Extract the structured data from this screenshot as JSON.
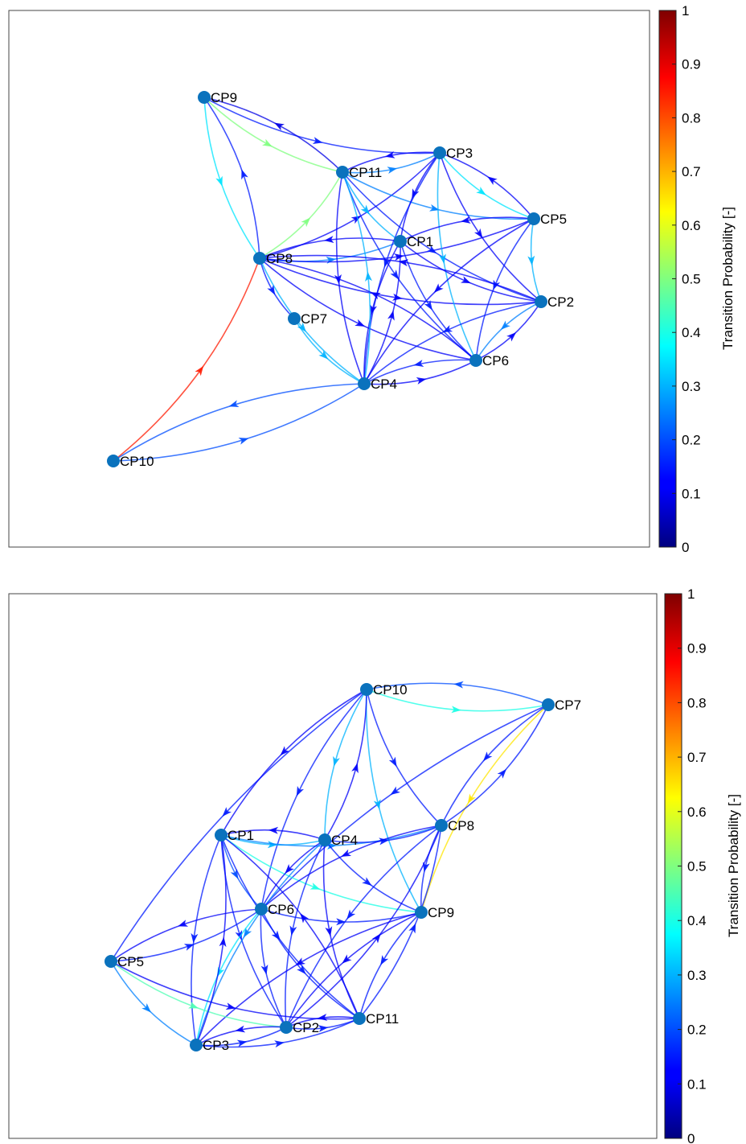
{
  "colorbar": {
    "title": "Transition Probability [-]",
    "ticks": [
      "0",
      "0.1",
      "0.2",
      "0.3",
      "0.4",
      "0.5",
      "0.6",
      "0.7",
      "0.8",
      "0.9",
      "1"
    ]
  },
  "graphs": [
    {
      "id": "top",
      "nodes": [
        {
          "id": "CP1",
          "label": "CP1"
        },
        {
          "id": "CP2",
          "label": "CP2"
        },
        {
          "id": "CP3",
          "label": "CP3"
        },
        {
          "id": "CP4",
          "label": "CP4"
        },
        {
          "id": "CP5",
          "label": "CP5"
        },
        {
          "id": "CP6",
          "label": "CP6"
        },
        {
          "id": "CP7",
          "label": "CP7"
        },
        {
          "id": "CP8",
          "label": "CP8"
        },
        {
          "id": "CP9",
          "label": "CP9"
        },
        {
          "id": "CP10",
          "label": "CP10"
        },
        {
          "id": "CP11",
          "label": "CP11"
        }
      ],
      "edges": [
        {
          "from": "CP10",
          "to": "CP8",
          "p": 0.85
        },
        {
          "from": "CP10",
          "to": "CP4",
          "p": 0.2
        },
        {
          "from": "CP4",
          "to": "CP10",
          "p": 0.2
        },
        {
          "from": "CP9",
          "to": "CP3",
          "p": 0.15
        },
        {
          "from": "CP9",
          "to": "CP8",
          "p": 0.35
        },
        {
          "from": "CP8",
          "to": "CP9",
          "p": 0.15
        },
        {
          "from": "CP9",
          "to": "CP11",
          "p": 0.5
        },
        {
          "from": "CP11",
          "to": "CP9",
          "p": 0.1
        },
        {
          "from": "CP8",
          "to": "CP11",
          "p": 0.5
        },
        {
          "from": "CP8",
          "to": "CP3",
          "p": 0.12
        },
        {
          "from": "CP8",
          "to": "CP1",
          "p": 0.25
        },
        {
          "from": "CP1",
          "to": "CP8",
          "p": 0.12
        },
        {
          "from": "CP8",
          "to": "CP5",
          "p": 0.12
        },
        {
          "from": "CP8",
          "to": "CP2",
          "p": 0.12
        },
        {
          "from": "CP8",
          "to": "CP6",
          "p": 0.12
        },
        {
          "from": "CP8",
          "to": "CP4",
          "p": 0.3
        },
        {
          "from": "CP8",
          "to": "CP7",
          "p": 0.15
        },
        {
          "from": "CP11",
          "to": "CP3",
          "p": 0.25
        },
        {
          "from": "CP3",
          "to": "CP11",
          "p": 0.12
        },
        {
          "from": "CP11",
          "to": "CP1",
          "p": 0.3
        },
        {
          "from": "CP11",
          "to": "CP5",
          "p": 0.25
        },
        {
          "from": "CP11",
          "to": "CP2",
          "p": 0.15
        },
        {
          "from": "CP11",
          "to": "CP6",
          "p": 0.15
        },
        {
          "from": "CP11",
          "to": "CP4",
          "p": 0.12
        },
        {
          "from": "CP3",
          "to": "CP5",
          "p": 0.35
        },
        {
          "from": "CP5",
          "to": "CP3",
          "p": 0.12
        },
        {
          "from": "CP3",
          "to": "CP1",
          "p": 0.12
        },
        {
          "from": "CP3",
          "to": "CP4",
          "p": 0.15
        },
        {
          "from": "CP3",
          "to": "CP6",
          "p": 0.3
        },
        {
          "from": "CP3",
          "to": "CP2",
          "p": 0.12
        },
        {
          "from": "CP5",
          "to": "CP1",
          "p": 0.12
        },
        {
          "from": "CP5",
          "to": "CP2",
          "p": 0.3
        },
        {
          "from": "CP5",
          "to": "CP6",
          "p": 0.15
        },
        {
          "from": "CP5",
          "to": "CP4",
          "p": 0.12
        },
        {
          "from": "CP1",
          "to": "CP2",
          "p": 0.12
        },
        {
          "from": "CP1",
          "to": "CP6",
          "p": 0.15
        },
        {
          "from": "CP1",
          "to": "CP4",
          "p": 0.12
        },
        {
          "from": "CP2",
          "to": "CP6",
          "p": 0.25
        },
        {
          "from": "CP6",
          "to": "CP2",
          "p": 0.12
        },
        {
          "from": "CP2",
          "to": "CP4",
          "p": 0.15
        },
        {
          "from": "CP6",
          "to": "CP4",
          "p": 0.15
        },
        {
          "from": "CP4",
          "to": "CP6",
          "p": 0.12
        },
        {
          "from": "CP4",
          "to": "CP1",
          "p": 0.12
        },
        {
          "from": "CP7",
          "to": "CP4",
          "p": 0.3
        },
        {
          "from": "CP4",
          "to": "CP11",
          "p": 0.3
        },
        {
          "from": "CP6",
          "to": "CP8",
          "p": 0.12
        },
        {
          "from": "CP2",
          "to": "CP8",
          "p": 0.12
        }
      ]
    },
    {
      "id": "bottom",
      "nodes": [
        {
          "id": "CP1",
          "label": "CP1"
        },
        {
          "id": "CP2",
          "label": "CP2"
        },
        {
          "id": "CP3",
          "label": "CP3"
        },
        {
          "id": "CP4",
          "label": "CP4"
        },
        {
          "id": "CP5",
          "label": "CP5"
        },
        {
          "id": "CP6",
          "label": "CP6"
        },
        {
          "id": "CP7",
          "label": "CP7"
        },
        {
          "id": "CP8",
          "label": "CP8"
        },
        {
          "id": "CP9",
          "label": "CP9"
        },
        {
          "id": "CP10",
          "label": "CP10"
        },
        {
          "id": "CP11",
          "label": "CP11"
        }
      ],
      "edges": [
        {
          "from": "CP10",
          "to": "CP7",
          "p": 0.4
        },
        {
          "from": "CP7",
          "to": "CP10",
          "p": 0.2
        },
        {
          "from": "CP7",
          "to": "CP9",
          "p": 0.65
        },
        {
          "from": "CP7",
          "to": "CP8",
          "p": 0.15
        },
        {
          "from": "CP8",
          "to": "CP7",
          "p": 0.15
        },
        {
          "from": "CP7",
          "to": "CP6",
          "p": 0.15
        },
        {
          "from": "CP10",
          "to": "CP5",
          "p": 0.15
        },
        {
          "from": "CP10",
          "to": "CP1",
          "p": 0.12
        },
        {
          "from": "CP10",
          "to": "CP4",
          "p": 0.3
        },
        {
          "from": "CP10",
          "to": "CP8",
          "p": 0.15
        },
        {
          "from": "CP10",
          "to": "CP9",
          "p": 0.3
        },
        {
          "from": "CP10",
          "to": "CP6",
          "p": 0.15
        },
        {
          "from": "CP4",
          "to": "CP10",
          "p": 0.12
        },
        {
          "from": "CP1",
          "to": "CP4",
          "p": 0.3
        },
        {
          "from": "CP4",
          "to": "CP1",
          "p": 0.12
        },
        {
          "from": "CP1",
          "to": "CP8",
          "p": 0.25
        },
        {
          "from": "CP1",
          "to": "CP6",
          "p": 0.2
        },
        {
          "from": "CP1",
          "to": "CP9",
          "p": 0.4
        },
        {
          "from": "CP1",
          "to": "CP2",
          "p": 0.15
        },
        {
          "from": "CP1",
          "to": "CP3",
          "p": 0.15
        },
        {
          "from": "CP1",
          "to": "CP11",
          "p": 0.15
        },
        {
          "from": "CP4",
          "to": "CP8",
          "p": 0.15
        },
        {
          "from": "CP4",
          "to": "CP6",
          "p": 0.12
        },
        {
          "from": "CP4",
          "to": "CP9",
          "p": 0.15
        },
        {
          "from": "CP4",
          "to": "CP3",
          "p": 0.25
        },
        {
          "from": "CP4",
          "to": "CP2",
          "p": 0.15
        },
        {
          "from": "CP4",
          "to": "CP11",
          "p": 0.12
        },
        {
          "from": "CP8",
          "to": "CP6",
          "p": 0.12
        },
        {
          "from": "CP8",
          "to": "CP9",
          "p": 0.15
        },
        {
          "from": "CP8",
          "to": "CP2",
          "p": 0.15
        },
        {
          "from": "CP6",
          "to": "CP9",
          "p": 0.15
        },
        {
          "from": "CP6",
          "to": "CP2",
          "p": 0.15
        },
        {
          "from": "CP6",
          "to": "CP3",
          "p": 0.35
        },
        {
          "from": "CP6",
          "to": "CP11",
          "p": 0.15
        },
        {
          "from": "CP6",
          "to": "CP5",
          "p": 0.12
        },
        {
          "from": "CP9",
          "to": "CP2",
          "p": 0.12
        },
        {
          "from": "CP9",
          "to": "CP11",
          "p": 0.15
        },
        {
          "from": "CP9",
          "to": "CP3",
          "p": 0.12
        },
        {
          "from": "CP5",
          "to": "CP6",
          "p": 0.15
        },
        {
          "from": "CP5",
          "to": "CP3",
          "p": 0.25
        },
        {
          "from": "CP5",
          "to": "CP2",
          "p": 0.45
        },
        {
          "from": "CP5",
          "to": "CP11",
          "p": 0.12
        },
        {
          "from": "CP3",
          "to": "CP2",
          "p": 0.15
        },
        {
          "from": "CP2",
          "to": "CP3",
          "p": 0.12
        },
        {
          "from": "CP2",
          "to": "CP11",
          "p": 0.15
        },
        {
          "from": "CP11",
          "to": "CP2",
          "p": 0.12
        },
        {
          "from": "CP3",
          "to": "CP11",
          "p": 0.15
        },
        {
          "from": "CP3",
          "to": "CP1",
          "p": 0.12
        },
        {
          "from": "CP11",
          "to": "CP1",
          "p": 0.12
        },
        {
          "from": "CP2",
          "to": "CP8",
          "p": 0.12
        },
        {
          "from": "CP11",
          "to": "CP8",
          "p": 0.15
        }
      ]
    }
  ]
}
